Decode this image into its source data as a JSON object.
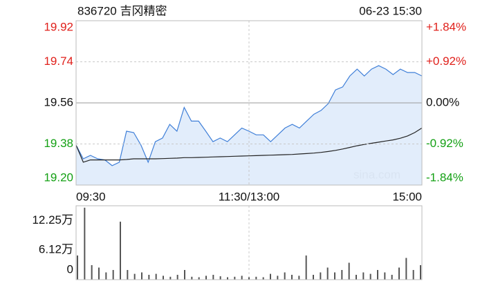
{
  "chart_data": [
    {
      "type": "line",
      "title": "836720 吉冈精密",
      "subtitle": "06-23 15:30",
      "watermark": "sina.com",
      "x": [
        0,
        5,
        10,
        15,
        20,
        25,
        30,
        35,
        40,
        45,
        50,
        55,
        60,
        65,
        70,
        75,
        80,
        85,
        90,
        95,
        100,
        105,
        110,
        115,
        120,
        125,
        130,
        135,
        140,
        145,
        150,
        155,
        160,
        165,
        170,
        175,
        180,
        185,
        190,
        195,
        200,
        205,
        210,
        215,
        220,
        225,
        230,
        235,
        240
      ],
      "xlim": [
        0,
        240
      ],
      "xticks": [
        {
          "value": 0,
          "label": "09:30"
        },
        {
          "value": 120,
          "label": "11:30/13:00"
        },
        {
          "value": 240,
          "label": "15:00"
        }
      ],
      "ylim": [
        19.2,
        19.92
      ],
      "yticks": [
        19.92,
        19.74,
        19.56,
        19.38,
        {
          "value": 19.2,
          "label": "19.20"
        }
      ],
      "y2lim": [
        -1.84,
        1.84
      ],
      "y2ticks": [
        {
          "value": 1.84,
          "label": "+1.84%"
        },
        {
          "value": 0.92,
          "label": "+0.92%"
        },
        {
          "value": 0,
          "label": "0.00%"
        },
        {
          "value": -0.92,
          "label": "-0.92%"
        },
        {
          "value": -1.84,
          "label": "-1.84%"
        }
      ],
      "up_color": "#e0201b",
      "down_color": "#13a013",
      "grid": true,
      "series": [
        {
          "color": "#3f7fd8",
          "fill": "#dbe8fa",
          "values": [
            19.375,
            19.315,
            19.33,
            19.315,
            19.31,
            19.285,
            19.3,
            19.436,
            19.43,
            19.375,
            19.3,
            19.39,
            19.406,
            19.466,
            19.436,
            19.54,
            19.48,
            19.48,
            19.436,
            19.39,
            19.406,
            19.39,
            19.42,
            19.45,
            19.436,
            19.42,
            19.42,
            19.39,
            19.42,
            19.45,
            19.466,
            19.45,
            19.48,
            19.51,
            19.527,
            19.557,
            19.617,
            19.63,
            19.678,
            19.708,
            19.678,
            19.708,
            19.723,
            19.708,
            19.684,
            19.708,
            19.693,
            19.693,
            19.678
          ]
        },
        {
          "color": "#222222",
          "values": [
            19.375,
            19.3,
            19.31,
            19.31,
            19.31,
            19.31,
            19.31,
            19.312,
            19.315,
            19.315,
            19.315,
            19.315,
            19.316,
            19.317,
            19.318,
            19.32,
            19.32,
            19.321,
            19.322,
            19.323,
            19.324,
            19.325,
            19.326,
            19.327,
            19.328,
            19.329,
            19.33,
            19.331,
            19.332,
            19.333,
            19.334,
            19.336,
            19.338,
            19.34,
            19.343,
            19.347,
            19.352,
            19.358,
            19.365,
            19.372,
            19.378,
            19.383,
            19.388,
            19.393,
            19.398,
            19.405,
            19.415,
            19.43,
            19.45
          ]
        }
      ]
    },
    {
      "type": "bar",
      "x": [
        0,
        5,
        10,
        15,
        20,
        25,
        30,
        35,
        40,
        45,
        50,
        55,
        60,
        65,
        70,
        75,
        80,
        85,
        90,
        95,
        100,
        105,
        110,
        115,
        120,
        125,
        130,
        135,
        140,
        145,
        150,
        155,
        160,
        165,
        170,
        175,
        180,
        185,
        190,
        195,
        200,
        205,
        210,
        215,
        220,
        225,
        230,
        235,
        240
      ],
      "xlim": [
        0,
        240
      ],
      "ylim": [
        0,
        15.3
      ],
      "yticks": [
        {
          "value": 12.25,
          "label": "12.25万"
        },
        {
          "value": 6.12,
          "label": "6.12万"
        },
        0
      ],
      "color": "#555555",
      "values": [
        5,
        14.9,
        3,
        2.5,
        1.5,
        2,
        12,
        2,
        1.2,
        1.5,
        1,
        1.2,
        0.8,
        0.6,
        1,
        2,
        0.6,
        0.5,
        0.8,
        1,
        0.7,
        0.5,
        0.6,
        0.8,
        0.5,
        0.6,
        0.5,
        1.2,
        0.8,
        1.5,
        1,
        0.8,
        5,
        1,
        1.5,
        2.5,
        1.5,
        2,
        3.5,
        1,
        1.5,
        1.2,
        2,
        1.5,
        1,
        2.5,
        4.5,
        2,
        3
      ]
    }
  ]
}
